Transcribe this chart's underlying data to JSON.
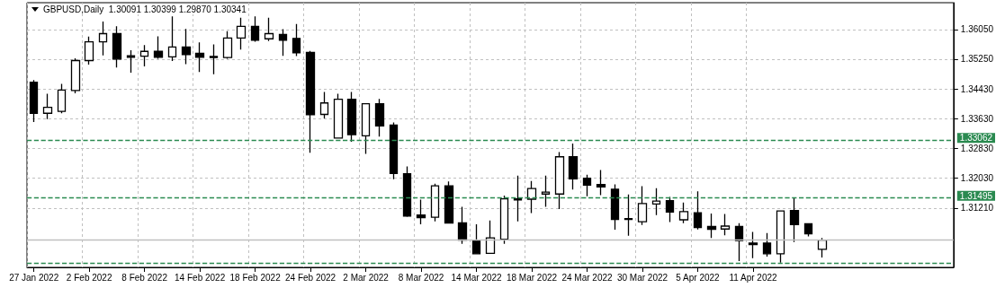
{
  "chart_data": {
    "type": "candlestick",
    "title": "GBPUSD,Daily  1.30091 1.30399 1.29870 1.30341",
    "categories": [
      "27 Jan 2022",
      null,
      null,
      null,
      "2 Feb 2022",
      null,
      null,
      null,
      "8 Feb 2022",
      null,
      null,
      null,
      "14 Feb 2022",
      null,
      null,
      null,
      "18 Feb 2022",
      null,
      null,
      null,
      "24 Feb 2022",
      null,
      null,
      null,
      "2 Mar 2022",
      null,
      null,
      null,
      "8 Mar 2022",
      null,
      null,
      null,
      "14 Mar 2022",
      null,
      null,
      null,
      "18 Mar 2022",
      null,
      null,
      null,
      "24 Mar 2022",
      null,
      null,
      null,
      "30 Mar 2022",
      null,
      null,
      null,
      "5 Apr 2022",
      null,
      null,
      null,
      "11 Apr 2022",
      null,
      null,
      null,
      null,
      null,
      null,
      null,
      null,
      null,
      null,
      null,
      null,
      null,
      null
    ],
    "ohlc": [
      [
        1.3462,
        1.3468,
        1.3354,
        1.3378
      ],
      [
        1.3378,
        1.3431,
        1.3362,
        1.3394
      ],
      [
        1.3383,
        1.3458,
        1.3378,
        1.3441
      ],
      [
        1.344,
        1.3527,
        1.3432,
        1.3521
      ],
      [
        1.3521,
        1.3586,
        1.351,
        1.3572
      ],
      [
        1.3572,
        1.3627,
        1.3535,
        1.3594
      ],
      [
        1.3594,
        1.3614,
        1.3502,
        1.3525
      ],
      [
        1.3534,
        1.3549,
        1.3488,
        1.353
      ],
      [
        1.3533,
        1.3563,
        1.3505,
        1.3546
      ],
      [
        1.3546,
        1.3587,
        1.3526,
        1.353
      ],
      [
        1.3531,
        1.3641,
        1.352,
        1.3558
      ],
      [
        1.3558,
        1.3607,
        1.3511,
        1.3537
      ],
      [
        1.3541,
        1.357,
        1.349,
        1.353
      ],
      [
        1.3532,
        1.3565,
        1.3484,
        1.3529
      ],
      [
        1.3529,
        1.3601,
        1.3526,
        1.3582
      ],
      [
        1.3582,
        1.3637,
        1.3551,
        1.3614
      ],
      [
        1.3614,
        1.3641,
        1.3572,
        1.3576
      ],
      [
        1.358,
        1.3637,
        1.3574,
        1.3594
      ],
      [
        1.3592,
        1.3606,
        1.3534,
        1.3576
      ],
      [
        1.3581,
        1.362,
        1.3533,
        1.3542
      ],
      [
        1.3543,
        1.3547,
        1.3271,
        1.3374
      ],
      [
        1.3375,
        1.3436,
        1.3364,
        1.3406
      ],
      [
        1.3311,
        1.3431,
        1.3311,
        1.3416
      ],
      [
        1.3416,
        1.3436,
        1.3301,
        1.332
      ],
      [
        1.3317,
        1.3404,
        1.3268,
        1.3404
      ],
      [
        1.3404,
        1.3417,
        1.3315,
        1.3344
      ],
      [
        1.3346,
        1.3353,
        1.3199,
        1.3215
      ],
      [
        1.3214,
        1.3234,
        1.3097,
        1.3099
      ],
      [
        1.3102,
        1.3144,
        1.3077,
        1.3095
      ],
      [
        1.3096,
        1.3187,
        1.3085,
        1.3181
      ],
      [
        1.3181,
        1.3193,
        1.308,
        1.308
      ],
      [
        1.3081,
        1.3124,
        1.3024,
        1.3034
      ],
      [
        1.3033,
        1.3077,
        1.2997,
        1.2997
      ],
      [
        1.2998,
        1.3087,
        1.2998,
        1.304
      ],
      [
        1.3036,
        1.3155,
        1.3024,
        1.3146
      ],
      [
        1.3146,
        1.3209,
        1.3085,
        1.3143
      ],
      [
        1.3145,
        1.3194,
        1.3107,
        1.3174
      ],
      [
        1.3159,
        1.3209,
        1.3124,
        1.3164
      ],
      [
        1.3159,
        1.3273,
        1.3118,
        1.326
      ],
      [
        1.326,
        1.3296,
        1.3171,
        1.32
      ],
      [
        1.3202,
        1.3211,
        1.3153,
        1.3183
      ],
      [
        1.3185,
        1.3224,
        1.3156,
        1.3178
      ],
      [
        1.3172,
        1.3185,
        1.3062,
        1.309
      ],
      [
        1.3092,
        1.3158,
        1.3046,
        1.309
      ],
      [
        1.3084,
        1.318,
        1.3075,
        1.3133
      ],
      [
        1.3132,
        1.3175,
        1.3102,
        1.314
      ],
      [
        1.3141,
        1.3151,
        1.3083,
        1.311
      ],
      [
        1.3089,
        1.3136,
        1.308,
        1.3111
      ],
      [
        1.3108,
        1.3166,
        1.3063,
        1.3068
      ],
      [
        1.3071,
        1.3106,
        1.304,
        1.3063
      ],
      [
        1.3064,
        1.3105,
        1.3047,
        1.3072
      ],
      [
        1.3071,
        1.308,
        1.2977,
        1.3032
      ],
      [
        1.3026,
        1.3056,
        1.2985,
        1.3022
      ],
      [
        1.3026,
        1.3053,
        1.2989,
        1.2997
      ],
      [
        1.2997,
        1.3113,
        1.2973,
        1.3113
      ],
      [
        1.3114,
        1.3148,
        1.3029,
        1.3076
      ],
      [
        1.3078,
        1.3078,
        1.3044,
        1.3051
      ],
      [
        1.30091,
        1.30399,
        1.2987,
        1.30341
      ],
      null,
      null,
      null,
      null,
      null,
      null,
      null,
      null,
      null
    ],
    "color": "#000000",
    "ylim": [
      1.296,
      1.3678
    ],
    "yticks": [
      {
        "value": 1.3121,
        "label": "1.31210"
      },
      {
        "value": 1.3203,
        "label": "1.32030"
      },
      {
        "value": 1.3283,
        "label": "1.32830"
      },
      {
        "value": 1.3363,
        "label": "1.33630"
      },
      {
        "value": 1.3443,
        "label": "1.34430"
      },
      {
        "value": 1.3525,
        "label": "1.35250"
      },
      {
        "value": 1.3605,
        "label": "1.36050"
      }
    ],
    "grid": true,
    "ref_lines": [
      {
        "axis": "y",
        "value": 1.33062,
        "label": "1.33062",
        "color": "#2a8a50",
        "line_style": "dashed"
      },
      {
        "axis": "y",
        "value": 1.31495,
        "label": "1.31495",
        "color": "#2a8a50",
        "line_style": "dashed"
      },
      {
        "axis": "y",
        "value": 1.30341,
        "label": null,
        "color": "#c0c0c0",
        "line_style": "solid"
      },
      {
        "axis": "y",
        "value": 1.2972,
        "label": null,
        "color": "#2a8a50",
        "line_style": "dashed"
      }
    ]
  }
}
